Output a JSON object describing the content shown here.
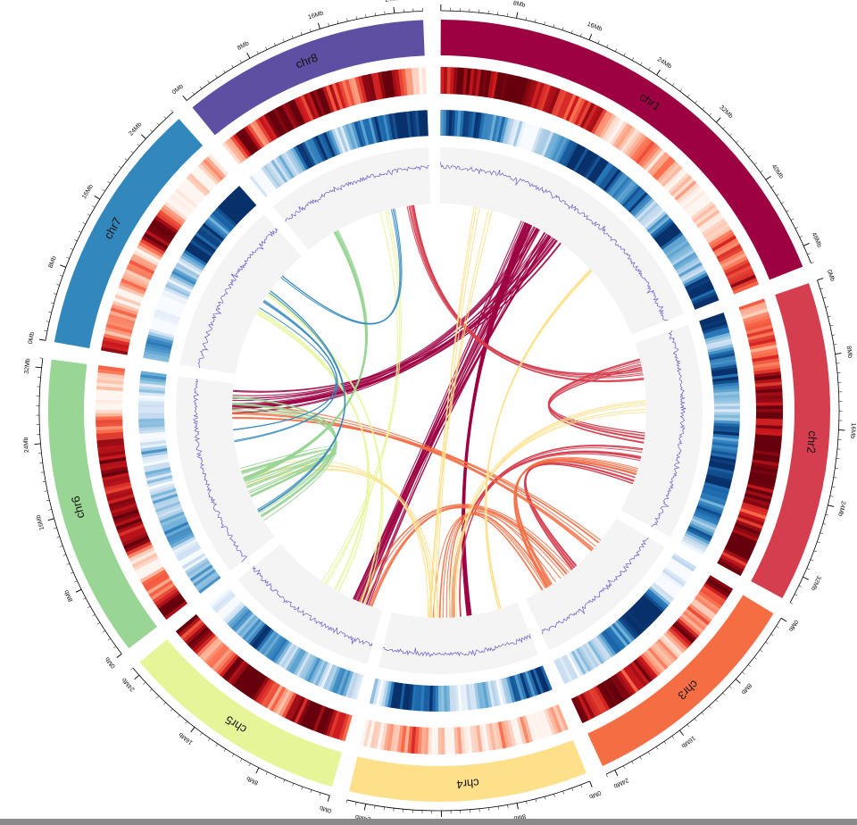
{
  "figure": {
    "type": "circos",
    "tick_unit": "Mb"
  },
  "chromosomes": [
    {
      "name": "chr1",
      "length": 50,
      "color": "#9E0142",
      "tick_step": 8,
      "ticks": [
        "0Mb",
        "8Mb",
        "16Mb",
        "24Mb",
        "32Mb",
        "40Mb",
        "48Mb"
      ]
    },
    {
      "name": "chr2",
      "length": 35,
      "color": "#D53E4F",
      "tick_step": 8,
      "ticks": [
        "0Mb",
        "8Mb",
        "16Mb",
        "24Mb",
        "32Mb"
      ]
    },
    {
      "name": "chr3",
      "length": 25,
      "color": "#F46D43",
      "tick_step": 8,
      "ticks": [
        "0Mb",
        "8Mb",
        "16Mb",
        "24Mb"
      ]
    },
    {
      "name": "chr4",
      "length": 26,
      "color": "#FEE08B",
      "tick_step": 8,
      "ticks": [
        "0Mb",
        "8Mb",
        "16Mb",
        "24Mb"
      ]
    },
    {
      "name": "chr5",
      "length": 25,
      "color": "#E6F598",
      "tick_step": 8,
      "ticks": [
        "0Mb",
        "8Mb",
        "16Mb",
        "24Mb"
      ]
    },
    {
      "name": "chr6",
      "length": 33,
      "color": "#99D594",
      "tick_step": 8,
      "ticks": [
        "0Mb",
        "8Mb",
        "16Mb",
        "24Mb",
        "32Mb"
      ]
    },
    {
      "name": "chr7",
      "length": 28,
      "color": "#3288BD",
      "tick_step": 8,
      "ticks": [
        "0Mb",
        "8Mb",
        "16Mb",
        "24Mb"
      ]
    },
    {
      "name": "chr8",
      "length": 27,
      "color": "#5E4FA2",
      "tick_step": 8,
      "ticks": [
        "0Mb",
        "8Mb",
        "16Mb",
        "24Mb"
      ]
    }
  ],
  "tracks": {
    "heatmap_outer": {
      "palette": [
        "#fff5f0",
        "#fcbba1",
        "#fb6a4a",
        "#cb181d",
        "#67000d"
      ]
    },
    "heatmap_inner": {
      "palette": [
        "#f7fbff",
        "#c6dbef",
        "#6baed6",
        "#2171b5",
        "#08306b"
      ]
    },
    "line_track": {
      "color": "#6a5acd",
      "background": "#f4f4f4"
    }
  },
  "links": {
    "groups": [
      {
        "from": "chr1",
        "to_all": true,
        "count": 60,
        "color": "#9E0142"
      },
      {
        "from": "chr2",
        "to_all": true,
        "count": 40,
        "color": "#D53E4F"
      },
      {
        "from": "chr3",
        "to_all": true,
        "count": 30,
        "color": "#F46D43"
      },
      {
        "from": "chr4",
        "to_all": true,
        "count": 20,
        "color": "#FEE08B"
      },
      {
        "from": "chr5",
        "to_all": true,
        "count": 10,
        "color": "#E6F598"
      },
      {
        "from": "chr6",
        "to_all": true,
        "count": 30,
        "color": "#99D594"
      },
      {
        "from": "chr7",
        "to_all": true,
        "count": 10,
        "color": "#3288BD"
      }
    ]
  }
}
